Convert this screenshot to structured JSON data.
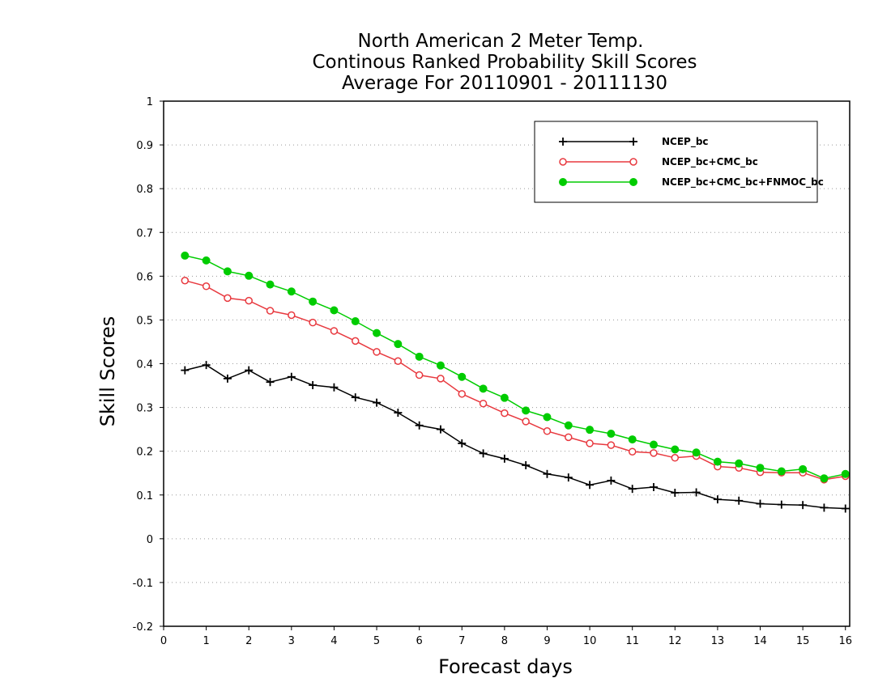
{
  "chart_data": {
    "type": "line",
    "title": [
      "North American 2 Meter Temp.",
      "Continous Ranked Probability Skill Scores",
      "Average For 20110901 - 20111130"
    ],
    "xlabel": "Forecast days",
    "ylabel": "Skill Scores",
    "xlim": [
      0,
      16.1
    ],
    "ylim": [
      -0.2,
      1
    ],
    "x_ticks": [
      0,
      1,
      2,
      3,
      4,
      5,
      6,
      7,
      8,
      9,
      10,
      11,
      12,
      13,
      14,
      15,
      16
    ],
    "y_ticks": [
      -0.2,
      -0.1,
      0,
      0.1,
      0.2,
      0.3,
      0.4,
      0.5,
      0.6,
      0.7,
      0.8,
      0.9,
      1
    ],
    "y_tick_labels": [
      "-0.2",
      "-0.1",
      "0",
      "0.1",
      "0.2",
      "0.3",
      "0.4",
      "0.5",
      "0.6",
      "0.7",
      "0.8",
      "0.9",
      "1"
    ],
    "grid": "horizontal-dotted",
    "legend_position": "top-right",
    "x": [
      0.5,
      1.0,
      1.5,
      2.0,
      2.5,
      3.0,
      3.5,
      4.0,
      4.5,
      5.0,
      5.5,
      6.0,
      6.5,
      7.0,
      7.5,
      8.0,
      8.5,
      9.0,
      9.5,
      10.0,
      10.5,
      11.0,
      11.5,
      12.0,
      12.5,
      13.0,
      13.5,
      14.0,
      14.5,
      15.0,
      15.5,
      16.0
    ],
    "series": [
      {
        "name": "NCEP_bc",
        "color": "#000000",
        "marker": "plus",
        "values": [
          0.385,
          0.397,
          0.366,
          0.385,
          0.358,
          0.37,
          0.351,
          0.346,
          0.323,
          0.311,
          0.288,
          0.259,
          0.25,
          0.218,
          0.195,
          0.183,
          0.168,
          0.148,
          0.14,
          0.123,
          0.133,
          0.114,
          0.118,
          0.105,
          0.106,
          0.09,
          0.087,
          0.08,
          0.078,
          0.077,
          0.071,
          0.069
        ]
      },
      {
        "name": "NCEP_bc+CMC_bc",
        "color": "#e8393f",
        "marker": "open-circle",
        "values": [
          0.59,
          0.577,
          0.55,
          0.544,
          0.521,
          0.511,
          0.494,
          0.475,
          0.452,
          0.427,
          0.406,
          0.374,
          0.366,
          0.331,
          0.309,
          0.287,
          0.268,
          0.246,
          0.232,
          0.218,
          0.214,
          0.199,
          0.196,
          0.185,
          0.189,
          0.165,
          0.162,
          0.152,
          0.151,
          0.151,
          0.135,
          0.143
        ]
      },
      {
        "name": "NCEP_bc+CMC_bc+FNMOC_bc",
        "color": "#00cc00",
        "marker": "filled-circle",
        "values": [
          0.647,
          0.636,
          0.611,
          0.601,
          0.581,
          0.565,
          0.542,
          0.522,
          0.497,
          0.47,
          0.445,
          0.416,
          0.396,
          0.37,
          0.343,
          0.322,
          0.293,
          0.278,
          0.259,
          0.249,
          0.24,
          0.227,
          0.215,
          0.204,
          0.197,
          0.176,
          0.172,
          0.162,
          0.154,
          0.159,
          0.138,
          0.148
        ]
      }
    ]
  }
}
